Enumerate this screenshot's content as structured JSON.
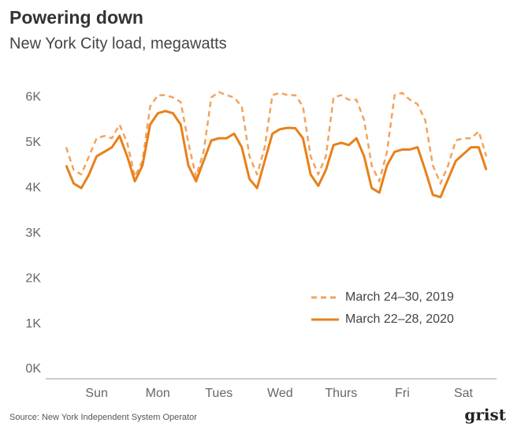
{
  "chart_data": {
    "type": "line",
    "title": "Powering down",
    "subtitle": "New York City load, megawatts",
    "source": "Source: New York Independent System Operator",
    "logo": "grist",
    "x": [
      0,
      3,
      6,
      9,
      12,
      15,
      18,
      21,
      24,
      27,
      30,
      33,
      36,
      39,
      42,
      45,
      48,
      51,
      54,
      57,
      60,
      63,
      66,
      69,
      72,
      75,
      78,
      81,
      84,
      87,
      90,
      93,
      96,
      99,
      102,
      105,
      108,
      111,
      114,
      117,
      120,
      123,
      126,
      129,
      132,
      135,
      138,
      141,
      144,
      147,
      150,
      153,
      156,
      159,
      162,
      165
    ],
    "xlim": [
      -8,
      169
    ],
    "xticks": [
      {
        "value": 12,
        "label": "Sun"
      },
      {
        "value": 36,
        "label": "Mon"
      },
      {
        "value": 60,
        "label": "Tues"
      },
      {
        "value": 84,
        "label": "Wed"
      },
      {
        "value": 108,
        "label": "Thurs"
      },
      {
        "value": 132,
        "label": "Fri"
      },
      {
        "value": 156,
        "label": "Sat"
      }
    ],
    "ylim": [
      0,
      6200
    ],
    "yticks": [
      {
        "value": 0,
        "label": "0K"
      },
      {
        "value": 1000,
        "label": "1K"
      },
      {
        "value": 2000,
        "label": "2K"
      },
      {
        "value": 3000,
        "label": "3K"
      },
      {
        "value": 4000,
        "label": "4K"
      },
      {
        "value": 5000,
        "label": "5K"
      },
      {
        "value": 6000,
        "label": "6K"
      }
    ],
    "grid": false,
    "legend": "lower right",
    "series": [
      {
        "name": "March 24–30, 2019",
        "color": "#f2a35e",
        "dash": true,
        "values": [
          4900,
          4400,
          4300,
          4700,
          5100,
          5150,
          5100,
          5400,
          5000,
          4250,
          4600,
          5800,
          6050,
          6050,
          6000,
          5900,
          5000,
          4250,
          4800,
          6000,
          6120,
          6050,
          6000,
          5800,
          4700,
          4300,
          4900,
          6050,
          6100,
          6050,
          6050,
          5800,
          4700,
          4300,
          4700,
          6000,
          6050,
          5950,
          5950,
          5500,
          4500,
          4150,
          4800,
          6050,
          6100,
          5950,
          5850,
          5500,
          4500,
          4100,
          4500,
          5050,
          5100,
          5100,
          5250,
          4700
        ]
      },
      {
        "name": "March 22–28, 2020",
        "color": "#e8801a",
        "dash": false,
        "values": [
          4500,
          4100,
          4000,
          4300,
          4700,
          4800,
          4900,
          5150,
          4700,
          4150,
          4500,
          5400,
          5650,
          5700,
          5650,
          5400,
          4500,
          4150,
          4600,
          5050,
          5100,
          5100,
          5200,
          4900,
          4200,
          4000,
          4600,
          5200,
          5300,
          5330,
          5320,
          5100,
          4300,
          4050,
          4400,
          4950,
          5000,
          4950,
          5100,
          4700,
          4000,
          3900,
          4500,
          4800,
          4850,
          4850,
          4900,
          4400,
          3850,
          3800,
          4200,
          4600,
          4750,
          4900,
          4900,
          4400
        ]
      }
    ]
  }
}
